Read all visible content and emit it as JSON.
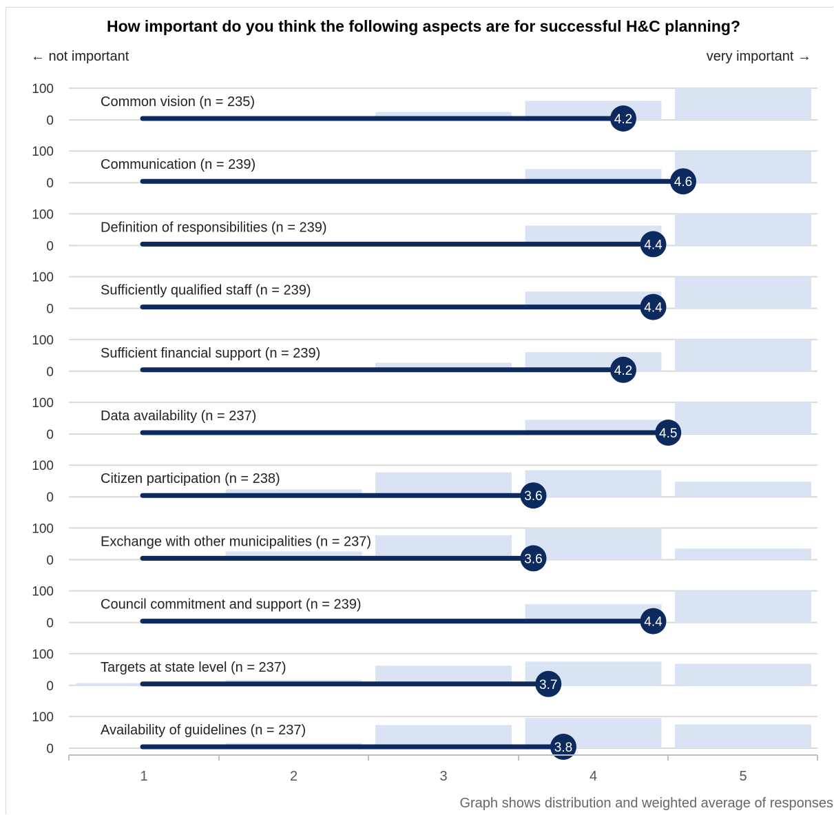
{
  "chart_data": {
    "type": "bar",
    "title": "How important do you think the following aspects are for successful H&C planning?",
    "left_hint": "← not important",
    "right_hint": "very important →",
    "note": "Graph shows distribution and weighted average of responses",
    "categories": [
      "1",
      "2",
      "3",
      "4",
      "5"
    ],
    "row_ylim": [
      0,
      100
    ],
    "row_ytick_labels": [
      "0",
      "100"
    ],
    "colors": {
      "bar": "#dae3f3",
      "line": "#0d2a5e",
      "grid": "#d9d9d9",
      "axis": "#bfbfbf"
    },
    "series": [
      {
        "name": "Common vision (n = 235)",
        "values": [
          0,
          1,
          25,
          60,
          100
        ],
        "average": 4.2,
        "average_label": "4.2"
      },
      {
        "name": "Communication (n = 239)",
        "values": [
          0,
          0,
          3,
          43,
          100
        ],
        "average": 4.6,
        "average_label": "4.6"
      },
      {
        "name": "Definition of responsibilities (n = 239)",
        "values": [
          2,
          1,
          6,
          63,
          100
        ],
        "average": 4.4,
        "average_label": "4.4"
      },
      {
        "name": "Sufficiently qualified staff (n = 239)",
        "values": [
          0,
          1,
          8,
          53,
          100
        ],
        "average": 4.4,
        "average_label": "4.4"
      },
      {
        "name": "Sufficient financial support (n = 239)",
        "values": [
          0,
          0,
          27,
          60,
          100
        ],
        "average": 4.2,
        "average_label": "4.2"
      },
      {
        "name": "Data availability (n = 237)",
        "values": [
          0,
          0,
          5,
          45,
          100
        ],
        "average": 4.5,
        "average_label": "4.5"
      },
      {
        "name": "Citizen participation (n = 238)",
        "values": [
          0,
          24,
          77,
          84,
          48
        ],
        "average": 3.6,
        "average_label": "3.6"
      },
      {
        "name": "Exchange with other municipalities (n = 237)",
        "values": [
          0,
          26,
          77,
          100,
          35
        ],
        "average": 3.6,
        "average_label": "3.6"
      },
      {
        "name": "Council commitment and support (n = 239)",
        "values": [
          0,
          0,
          12,
          58,
          100
        ],
        "average": 4.4,
        "average_label": "4.4"
      },
      {
        "name": "Targets at state level (n = 237)",
        "values": [
          7,
          17,
          62,
          75,
          68
        ],
        "average": 3.7,
        "average_label": "3.7"
      },
      {
        "name": "Availability of guidelines (n = 237)",
        "values": [
          0,
          16,
          73,
          95,
          75
        ],
        "average": 3.8,
        "average_label": "3.8"
      }
    ]
  }
}
